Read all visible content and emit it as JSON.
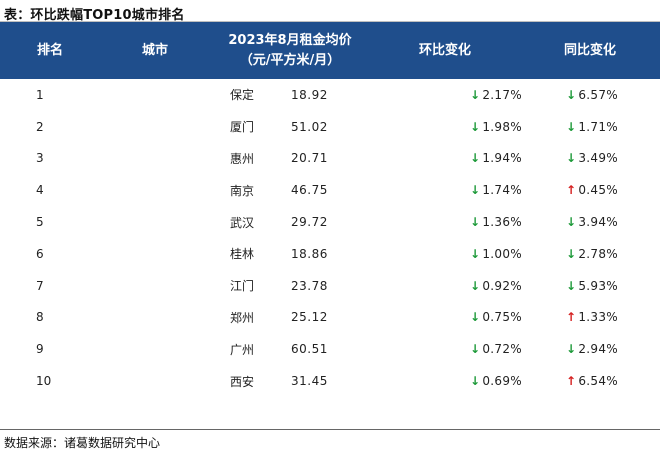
{
  "title": "表：环比跌幅TOP10城市排名",
  "headers": {
    "rank": "排名",
    "city": "城市",
    "rent_line1": "2023年8月租金均价",
    "rent_line2": "（元/平方米/月）",
    "mom": "环比变化",
    "yoy": "同比变化"
  },
  "rows": [
    {
      "rank": "1",
      "city": "保定",
      "rent": "18.92",
      "mom": "2.17%",
      "mom_dir": "down",
      "yoy": "6.57%",
      "yoy_dir": "down"
    },
    {
      "rank": "2",
      "city": "厦门",
      "rent": "51.02",
      "mom": "1.98%",
      "mom_dir": "down",
      "yoy": "1.71%",
      "yoy_dir": "down"
    },
    {
      "rank": "3",
      "city": "惠州",
      "rent": "20.71",
      "mom": "1.94%",
      "mom_dir": "down",
      "yoy": "3.49%",
      "yoy_dir": "down"
    },
    {
      "rank": "4",
      "city": "南京",
      "rent": "46.75",
      "mom": "1.74%",
      "mom_dir": "down",
      "yoy": "0.45%",
      "yoy_dir": "up"
    },
    {
      "rank": "5",
      "city": "武汉",
      "rent": "29.72",
      "mom": "1.36%",
      "mom_dir": "down",
      "yoy": "3.94%",
      "yoy_dir": "down"
    },
    {
      "rank": "6",
      "city": "桂林",
      "rent": "18.86",
      "mom": "1.00%",
      "mom_dir": "down",
      "yoy": "2.78%",
      "yoy_dir": "down"
    },
    {
      "rank": "7",
      "city": "江门",
      "rent": "23.78",
      "mom": "0.92%",
      "mom_dir": "down",
      "yoy": "5.93%",
      "yoy_dir": "down"
    },
    {
      "rank": "8",
      "city": "郑州",
      "rent": "25.12",
      "mom": "0.75%",
      "mom_dir": "down",
      "yoy": "1.33%",
      "yoy_dir": "up"
    },
    {
      "rank": "9",
      "city": "广州",
      "rent": "60.51",
      "mom": "0.72%",
      "mom_dir": "down",
      "yoy": "2.94%",
      "yoy_dir": "down"
    },
    {
      "rank": "10",
      "city": "西安",
      "rent": "31.45",
      "mom": "0.69%",
      "mom_dir": "down",
      "yoy": "6.54%",
      "yoy_dir": "up"
    }
  ],
  "source": "数据来源：诸葛数据研究中心",
  "colors": {
    "header_bg": "#1f4e8c",
    "down": "#1e9a3a",
    "up": "#d51f1f"
  }
}
